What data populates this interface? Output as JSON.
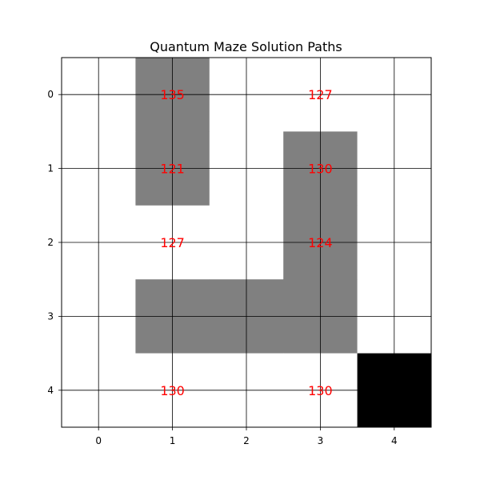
{
  "chart_data": {
    "type": "heatmap",
    "title": "Quantum Maze Solution Paths",
    "xlabel": "",
    "ylabel": "",
    "x_ticks": [
      0,
      1,
      2,
      3,
      4
    ],
    "y_ticks": [
      0,
      1,
      2,
      3,
      4
    ],
    "grid": true,
    "rows": 5,
    "cols": 5,
    "grid_values": [
      [
        0.0,
        0.5,
        0.0,
        0.0,
        0.0
      ],
      [
        0.0,
        0.5,
        0.0,
        0.5,
        0.0
      ],
      [
        0.0,
        0.0,
        0.0,
        0.5,
        0.0
      ],
      [
        0.0,
        0.5,
        0.5,
        0.5,
        0.0
      ],
      [
        0.0,
        0.0,
        0.0,
        0.0,
        1.0
      ]
    ],
    "colormap": {
      "0.0": "#ffffff",
      "0.5": "#808080",
      "1.0": "#000000"
    },
    "annotations": [
      {
        "row": 0,
        "col": 1,
        "text": "135"
      },
      {
        "row": 0,
        "col": 3,
        "text": "127"
      },
      {
        "row": 1,
        "col": 1,
        "text": "121"
      },
      {
        "row": 1,
        "col": 3,
        "text": "130"
      },
      {
        "row": 2,
        "col": 1,
        "text": "127"
      },
      {
        "row": 2,
        "col": 3,
        "text": "124"
      },
      {
        "row": 4,
        "col": 1,
        "text": "130"
      },
      {
        "row": 4,
        "col": 3,
        "text": "130"
      }
    ],
    "annotation_color": "#ff0000"
  }
}
